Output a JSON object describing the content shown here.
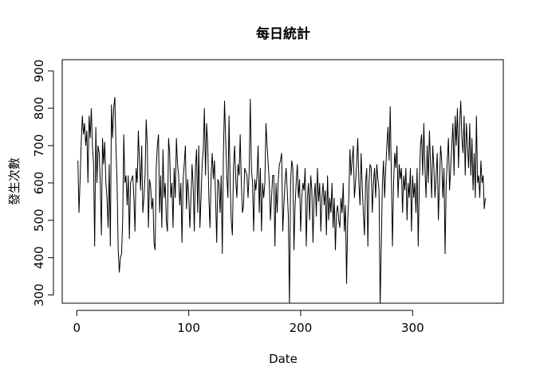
{
  "chart_data": {
    "type": "line",
    "title": "每日統計",
    "x_label": "Date",
    "y_label": "發生次數",
    "color": "#000000",
    "xlim": [
      -13,
      381
    ],
    "xticks": [
      0,
      100,
      200,
      300
    ],
    "ylim": [
      278,
      930
    ],
    "yticks": [
      300,
      400,
      500,
      600,
      700,
      800,
      900
    ],
    "x": [
      1,
      2,
      3,
      4,
      5,
      6,
      7,
      8,
      9,
      10,
      11,
      12,
      13,
      14,
      15,
      16,
      17,
      18,
      19,
      20,
      21,
      22,
      23,
      24,
      25,
      26,
      27,
      28,
      29,
      30,
      31,
      32,
      33,
      34,
      35,
      36,
      37,
      38,
      39,
      40,
      41,
      42,
      43,
      44,
      45,
      46,
      47,
      48,
      49,
      50,
      51,
      52,
      53,
      54,
      55,
      56,
      57,
      58,
      59,
      60,
      61,
      62,
      63,
      64,
      65,
      66,
      67,
      68,
      69,
      70,
      71,
      72,
      73,
      74,
      75,
      76,
      77,
      78,
      79,
      80,
      81,
      82,
      83,
      84,
      85,
      86,
      87,
      88,
      89,
      90,
      91,
      92,
      93,
      94,
      95,
      96,
      97,
      98,
      99,
      100,
      101,
      102,
      103,
      104,
      105,
      106,
      107,
      108,
      109,
      110,
      111,
      112,
      113,
      114,
      115,
      116,
      117,
      118,
      119,
      120,
      121,
      122,
      123,
      124,
      125,
      126,
      127,
      128,
      129,
      130,
      131,
      132,
      133,
      134,
      135,
      136,
      137,
      138,
      139,
      140,
      141,
      142,
      143,
      144,
      145,
      146,
      147,
      148,
      149,
      150,
      151,
      152,
      153,
      154,
      155,
      156,
      157,
      158,
      159,
      160,
      161,
      162,
      163,
      164,
      165,
      166,
      167,
      168,
      169,
      170,
      171,
      172,
      173,
      174,
      175,
      176,
      177,
      178,
      179,
      180,
      181,
      182,
      183,
      184,
      185,
      186,
      187,
      188,
      189,
      190,
      191,
      192,
      193,
      194,
      195,
      196,
      197,
      198,
      199,
      200,
      201,
      202,
      203,
      204,
      205,
      206,
      207,
      208,
      209,
      210,
      211,
      212,
      213,
      214,
      215,
      216,
      217,
      218,
      219,
      220,
      221,
      222,
      223,
      224,
      225,
      226,
      227,
      228,
      229,
      230,
      231,
      232,
      233,
      234,
      235,
      236,
      237,
      238,
      239,
      240,
      241,
      242,
      243,
      244,
      245,
      246,
      247,
      248,
      249,
      250,
      251,
      252,
      253,
      254,
      255,
      256,
      257,
      258,
      259,
      260,
      261,
      262,
      263,
      264,
      265,
      266,
      267,
      268,
      269,
      270,
      271,
      272,
      273,
      274,
      275,
      276,
      277,
      278,
      279,
      280,
      281,
      282,
      283,
      284,
      285,
      286,
      287,
      288,
      289,
      290,
      291,
      292,
      293,
      294,
      295,
      296,
      297,
      298,
      299,
      300,
      301,
      302,
      303,
      304,
      305,
      306,
      307,
      308,
      309,
      310,
      311,
      312,
      313,
      314,
      315,
      316,
      317,
      318,
      319,
      320,
      321,
      322,
      323,
      324,
      325,
      326,
      327,
      328,
      329,
      330,
      331,
      332,
      333,
      334,
      335,
      336,
      337,
      338,
      339,
      340,
      341,
      342,
      343,
      344,
      345,
      346,
      347,
      348,
      349,
      350,
      351,
      352,
      353,
      354,
      355,
      356,
      357,
      358,
      359,
      360,
      361,
      362,
      363,
      364,
      365
    ],
    "values": [
      660,
      520,
      610,
      710,
      780,
      730,
      760,
      700,
      740,
      600,
      780,
      720,
      800,
      700,
      650,
      430,
      750,
      600,
      700,
      680,
      600,
      460,
      720,
      650,
      710,
      600,
      560,
      480,
      650,
      430,
      810,
      720,
      800,
      830,
      700,
      600,
      420,
      360,
      400,
      410,
      500,
      730,
      600,
      620,
      540,
      620,
      450,
      600,
      610,
      620,
      560,
      470,
      640,
      600,
      740,
      660,
      580,
      700,
      520,
      560,
      620,
      770,
      700,
      480,
      610,
      590,
      530,
      560,
      440,
      420,
      640,
      700,
      730,
      520,
      620,
      480,
      690,
      560,
      600,
      500,
      470,
      720,
      680,
      560,
      600,
      480,
      640,
      560,
      720,
      650,
      620,
      540,
      600,
      440,
      610,
      650,
      700,
      530,
      610,
      570,
      480,
      560,
      650,
      590,
      470,
      640,
      690,
      520,
      700,
      480,
      560,
      650,
      690,
      800,
      620,
      760,
      700,
      560,
      480,
      620,
      680,
      610,
      660,
      560,
      440,
      610,
      600,
      520,
      620,
      410,
      680,
      820,
      720,
      620,
      560,
      780,
      600,
      500,
      460,
      640,
      700,
      610,
      560,
      650,
      620,
      730,
      600,
      520,
      540,
      640,
      630,
      620,
      560,
      630,
      825,
      640,
      600,
      470,
      610,
      580,
      620,
      700,
      520,
      640,
      470,
      600,
      560,
      600,
      760,
      700,
      650,
      600,
      500,
      560,
      620,
      620,
      430,
      600,
      520,
      610,
      650,
      660,
      680,
      470,
      540,
      600,
      640,
      580,
      510,
      270,
      600,
      660,
      640,
      420,
      540,
      600,
      650,
      560,
      610,
      470,
      560,
      600,
      580,
      640,
      430,
      560,
      600,
      500,
      620,
      580,
      440,
      560,
      600,
      510,
      640,
      550,
      600,
      470,
      560,
      600,
      540,
      580,
      460,
      620,
      500,
      560,
      520,
      600,
      480,
      560,
      420,
      520,
      540,
      500,
      480,
      560,
      520,
      600,
      470,
      540,
      330,
      500,
      560,
      690,
      620,
      660,
      700,
      560,
      600,
      650,
      720,
      600,
      540,
      680,
      590,
      520,
      460,
      600,
      640,
      430,
      600,
      650,
      640,
      520,
      600,
      640,
      560,
      650,
      610,
      580,
      270,
      430,
      600,
      660,
      560,
      640,
      700,
      750,
      660,
      805,
      620,
      430,
      600,
      680,
      640,
      700,
      560,
      650,
      610,
      640,
      520,
      620,
      580,
      640,
      500,
      600,
      560,
      640,
      470,
      620,
      560,
      600,
      520,
      640,
      430,
      600,
      700,
      730,
      620,
      760,
      640,
      560,
      700,
      600,
      740,
      650,
      560,
      700,
      640,
      560,
      620,
      680,
      500,
      600,
      700,
      660,
      560,
      640,
      410,
      600,
      660,
      720,
      580,
      640,
      700,
      760,
      620,
      780,
      700,
      800,
      640,
      760,
      820,
      720,
      680,
      780,
      620,
      760,
      700,
      640,
      760,
      620,
      720,
      580,
      680,
      560,
      780,
      600,
      620,
      560,
      660,
      600,
      620,
      530,
      560
    ]
  }
}
